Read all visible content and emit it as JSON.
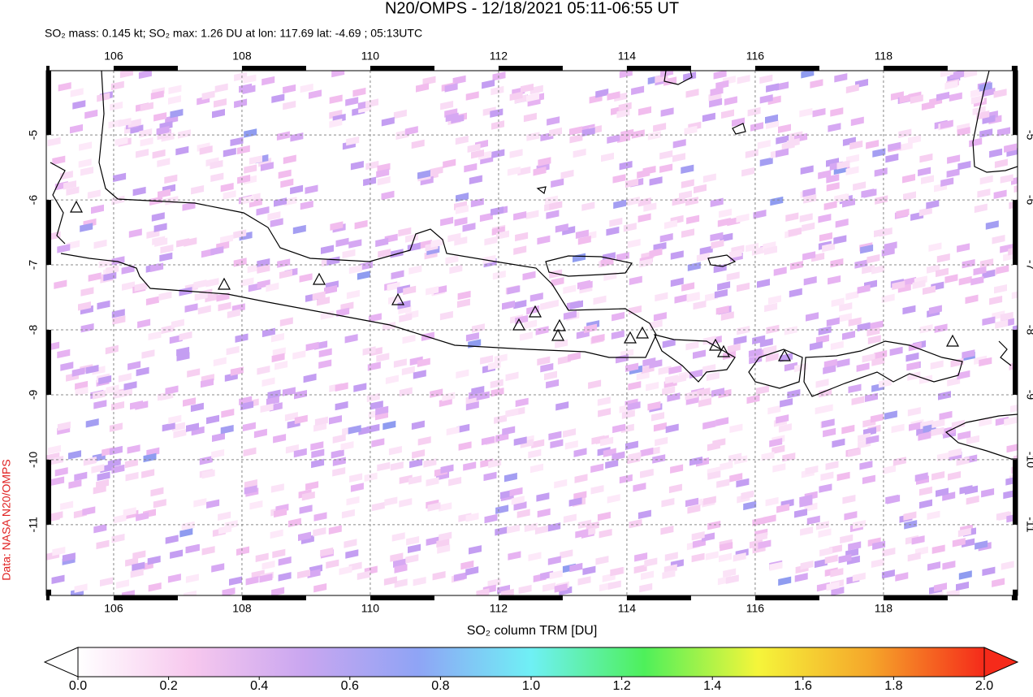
{
  "chart_data": {
    "type": "map",
    "title": "N20/OMPS - 12/18/2021 05:11-06:55 UT",
    "subtitle": "SO₂ mass: 0.145 kt; SO₂ max: 1.26 DU at lon: 117.69 lat: -4.69 ; 05:13UTC",
    "credit": "Data: NASA N20/OMPS",
    "xlim": [
      104.95,
      120.09
    ],
    "ylim": [
      -12.09,
      -4.01
    ],
    "xticks": [
      106,
      108,
      110,
      112,
      114,
      116,
      118
    ],
    "yticks": [
      -5,
      -6,
      -7,
      -8,
      -9,
      -10,
      -11
    ],
    "grid": true,
    "colorbar": {
      "label": "SO₂ column TRM [DU]",
      "lim": [
        0,
        2
      ],
      "ticks": [
        {
          "value": 0,
          "label": "0.0"
        },
        {
          "value": 0.2,
          "label": "0.2"
        },
        {
          "value": 0.4,
          "label": "0.4"
        },
        {
          "value": 0.6,
          "label": "0.6"
        },
        {
          "value": 0.8,
          "label": "0.8"
        },
        {
          "value": 1,
          "label": "1.0"
        },
        {
          "value": 1.2,
          "label": "1.2"
        },
        {
          "value": 1.4,
          "label": "1.4"
        },
        {
          "value": 1.6,
          "label": "1.6"
        },
        {
          "value": 1.8,
          "label": "1.8"
        },
        {
          "value": 2,
          "label": "2.0"
        }
      ],
      "colors": [
        "#ffffff",
        "#f7c8ee",
        "#c9a6f0",
        "#8fa4f5",
        "#6ff0f5",
        "#4ef05a",
        "#f5f53a",
        "#f5a52a",
        "#f52a1a"
      ]
    }
  }
}
